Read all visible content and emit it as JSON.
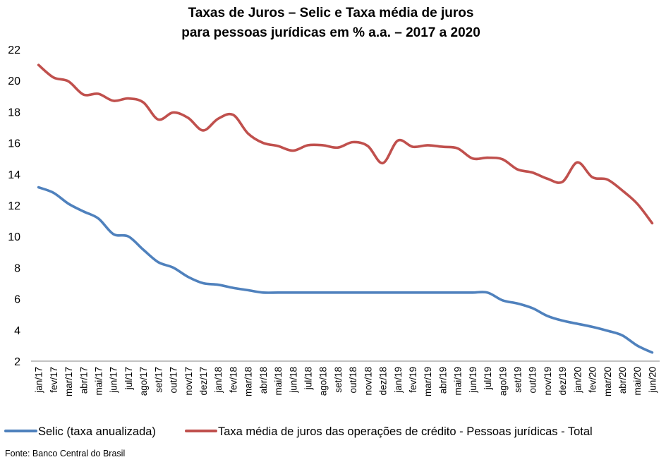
{
  "chart_data": {
    "type": "line",
    "title_line1": "Taxas de Juros – Selic e Taxa média de juros",
    "title_line2": "para pessoas jurídicas em % a.a. – 2017 a 2020",
    "xlabel": "",
    "ylabel": "",
    "ylim": [
      2,
      22
    ],
    "yticks": [
      2,
      4,
      6,
      8,
      10,
      12,
      14,
      16,
      18,
      20,
      22
    ],
    "grid": false,
    "legend_position": "bottom",
    "categories": [
      "jan/17",
      "fev/17",
      "mar/17",
      "abr/17",
      "mai/17",
      "jun/17",
      "jul/17",
      "ago/17",
      "set/17",
      "out/17",
      "nov/17",
      "dez/17",
      "jan/18",
      "fev/18",
      "mar/18",
      "abr/18",
      "mai/18",
      "jun/18",
      "jul/18",
      "ago/18",
      "set/18",
      "out/18",
      "nov/18",
      "dez/18",
      "jan/19",
      "fev/19",
      "mar/19",
      "abr/19",
      "mai/19",
      "jun/19",
      "jul/19",
      "ago/19",
      "set/19",
      "out/19",
      "nov/19",
      "dez/19",
      "jan/20",
      "fev/20",
      "mar/20",
      "abr/20",
      "mai/20",
      "jun/20"
    ],
    "series": [
      {
        "name": "Selic (taxa anualizada)",
        "color": "#4F81BD",
        "values": [
          13.15,
          12.8,
          12.1,
          11.6,
          11.15,
          10.15,
          10.0,
          9.15,
          8.35,
          8.0,
          7.4,
          7.0,
          6.9,
          6.7,
          6.55,
          6.4,
          6.4,
          6.4,
          6.4,
          6.4,
          6.4,
          6.4,
          6.4,
          6.4,
          6.4,
          6.4,
          6.4,
          6.4,
          6.4,
          6.4,
          6.4,
          5.9,
          5.7,
          5.4,
          4.9,
          4.6,
          4.4,
          4.2,
          3.95,
          3.65,
          3.0,
          2.55
        ]
      },
      {
        "name": "Taxa média de juros das operações de crédito - Pessoas jurídicas - Total",
        "color": "#C0504D",
        "values": [
          21.0,
          20.2,
          19.95,
          19.1,
          19.15,
          18.7,
          18.85,
          18.6,
          17.5,
          17.95,
          17.6,
          16.8,
          17.55,
          17.8,
          16.6,
          16.0,
          15.8,
          15.5,
          15.85,
          15.85,
          15.7,
          16.05,
          15.8,
          14.7,
          16.15,
          15.75,
          15.85,
          15.75,
          15.65,
          15.0,
          15.05,
          14.95,
          14.3,
          14.1,
          13.7,
          13.5,
          14.75,
          13.8,
          13.65,
          12.95,
          12.1,
          10.85
        ]
      }
    ]
  },
  "source_label": "Fonte: Banco Central do Brasil"
}
